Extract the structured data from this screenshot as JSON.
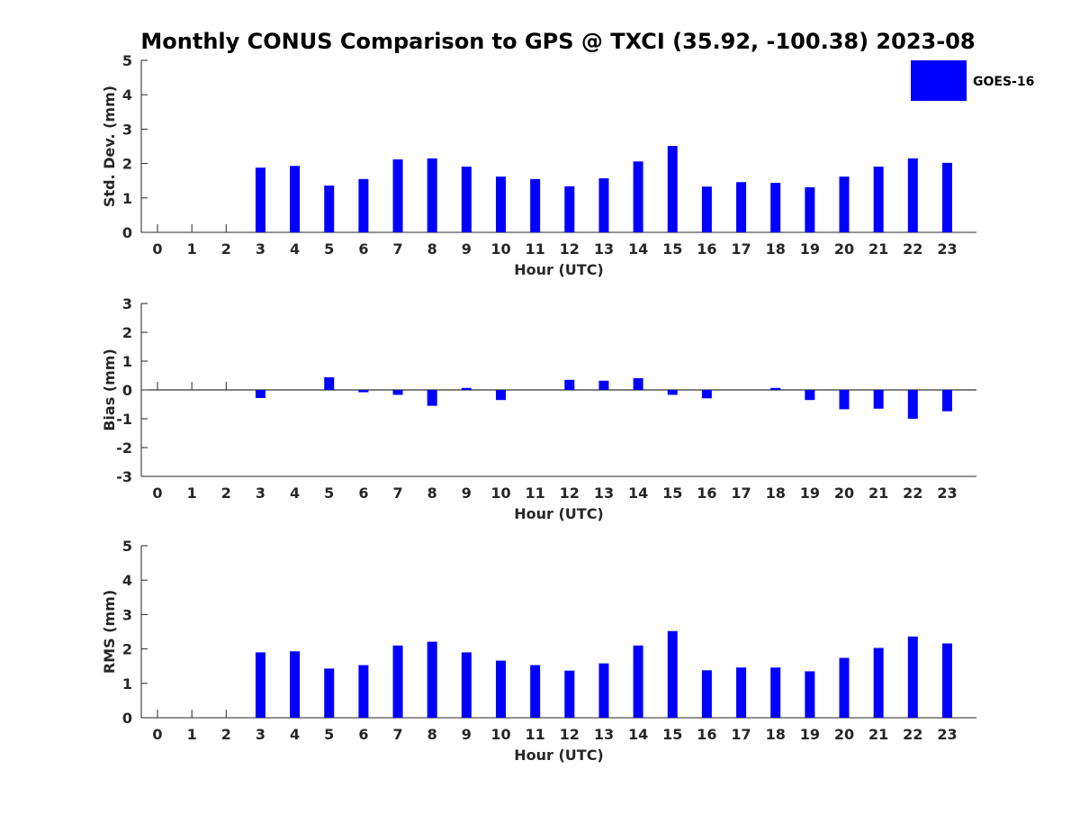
{
  "title": "Monthly CONUS Comparison to GPS @ TXCI (35.92, -100.38) 2023-08",
  "legend": {
    "label": "GOES-16",
    "placement": "top-right"
  },
  "colors": {
    "bar": "#0000ff",
    "axis": "#262626",
    "background": "#ffffff"
  },
  "chart_data": [
    {
      "type": "bar",
      "title": "Monthly CONUS Comparison to GPS @ TXCI (35.92, -100.38) 2023-08",
      "xlabel": "Hour (UTC)",
      "ylabel": "Std. Dev. (mm)",
      "ylim": [
        0,
        5
      ],
      "yticks": [
        0,
        1,
        2,
        3,
        4,
        5
      ],
      "grid": false,
      "categories": [
        "0",
        "1",
        "2",
        "3",
        "4",
        "5",
        "6",
        "7",
        "8",
        "9",
        "10",
        "11",
        "12",
        "13",
        "14",
        "15",
        "16",
        "17",
        "18",
        "19",
        "20",
        "21",
        "22",
        "23"
      ],
      "series": [
        {
          "name": "GOES-16",
          "values": [
            null,
            null,
            null,
            1.88,
            1.93,
            1.36,
            1.55,
            2.12,
            2.15,
            1.91,
            1.62,
            1.55,
            1.34,
            1.57,
            2.06,
            2.51,
            1.33,
            1.46,
            1.44,
            1.31,
            1.62,
            1.91,
            2.15,
            2.02
          ]
        }
      ]
    },
    {
      "type": "bar",
      "xlabel": "Hour (UTC)",
      "ylabel": "Bias (mm)",
      "ylim": [
        -3,
        3
      ],
      "yticks": [
        -3,
        -2,
        -1,
        0,
        1,
        2,
        3
      ],
      "grid": false,
      "categories": [
        "0",
        "1",
        "2",
        "3",
        "4",
        "5",
        "6",
        "7",
        "8",
        "9",
        "10",
        "11",
        "12",
        "13",
        "14",
        "15",
        "16",
        "17",
        "18",
        "19",
        "20",
        "21",
        "22",
        "23"
      ],
      "series": [
        {
          "name": "GOES-16",
          "values": [
            null,
            null,
            null,
            -0.28,
            0.0,
            0.44,
            -0.08,
            -0.17,
            -0.55,
            0.07,
            -0.35,
            0.0,
            0.35,
            0.32,
            0.41,
            -0.17,
            -0.29,
            0.0,
            0.07,
            -0.35,
            -0.67,
            -0.65,
            -1.0,
            -0.74
          ]
        }
      ]
    },
    {
      "type": "bar",
      "xlabel": "Hour (UTC)",
      "ylabel": "RMS (mm)",
      "ylim": [
        0,
        5
      ],
      "yticks": [
        0,
        1,
        2,
        3,
        4,
        5
      ],
      "grid": false,
      "categories": [
        "0",
        "1",
        "2",
        "3",
        "4",
        "5",
        "6",
        "7",
        "8",
        "9",
        "10",
        "11",
        "12",
        "13",
        "14",
        "15",
        "16",
        "17",
        "18",
        "19",
        "20",
        "21",
        "22",
        "23"
      ],
      "series": [
        {
          "name": "GOES-16",
          "values": [
            null,
            null,
            null,
            1.9,
            1.93,
            1.43,
            1.53,
            2.1,
            2.21,
            1.9,
            1.66,
            1.53,
            1.37,
            1.58,
            2.1,
            2.52,
            1.38,
            1.46,
            1.46,
            1.35,
            1.74,
            2.03,
            2.36,
            2.16
          ]
        }
      ]
    }
  ]
}
